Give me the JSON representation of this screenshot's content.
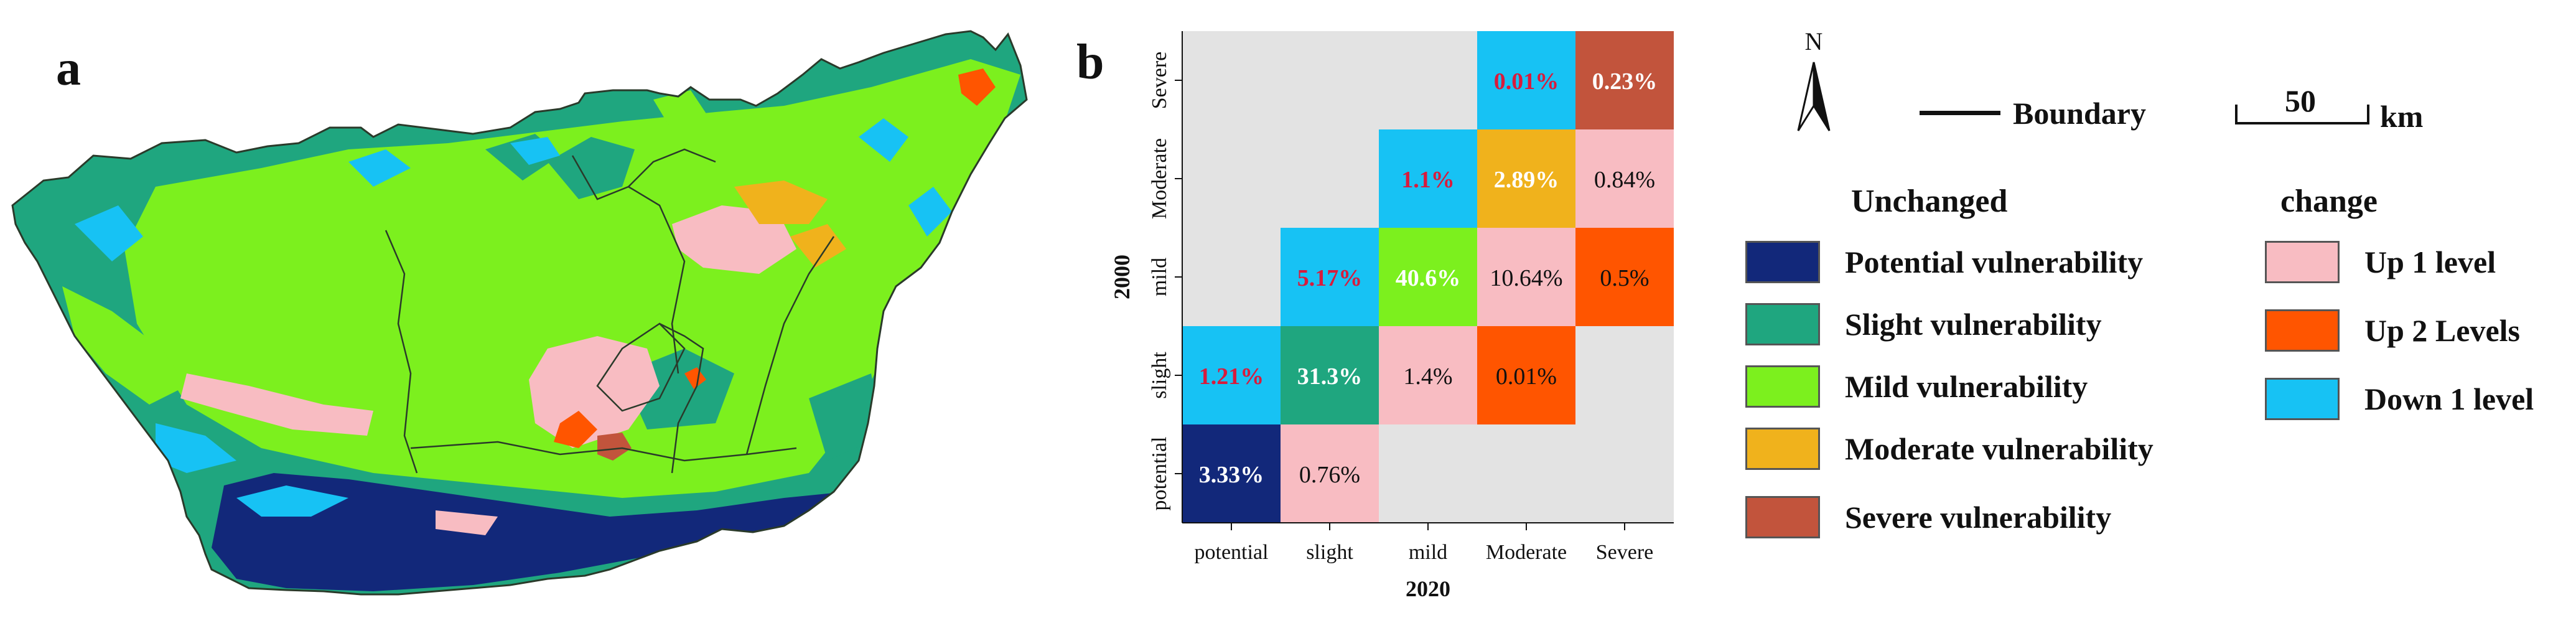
{
  "panel_a_label": "a",
  "panel_b_label": "b",
  "colors": {
    "potential": "#12287a",
    "slight": "#1fa67f",
    "mild": "#7cf01e",
    "moderate": "#f0b21c",
    "severe": "#c2543c",
    "up1": "#f8bcc2",
    "up2": "#ff5500",
    "down1": "#17c2f4",
    "empty": "#e3e3e3"
  },
  "matrix": {
    "x_title": "2020",
    "y_title": "2000",
    "x_labels": [
      "potential",
      "slight",
      "mild",
      "Moderate",
      "Severe"
    ],
    "y_labels": [
      "potential",
      "slight",
      "mild",
      "Moderate",
      "Severe"
    ],
    "cells": [
      {
        "row": "potential",
        "col": "potential",
        "value": "3.33%",
        "category": "potential",
        "text_color": "#ffffff"
      },
      {
        "row": "potential",
        "col": "slight",
        "value": "0.76%",
        "category": "up1",
        "text_color": "#111111"
      },
      {
        "row": "slight",
        "col": "potential",
        "value": "1.21%",
        "category": "down1",
        "text_color": "#d81b3c"
      },
      {
        "row": "slight",
        "col": "slight",
        "value": "31.3%",
        "category": "slight",
        "text_color": "#ffffff"
      },
      {
        "row": "slight",
        "col": "mild",
        "value": "1.4%",
        "category": "up1",
        "text_color": "#111111"
      },
      {
        "row": "slight",
        "col": "Moderate",
        "value": "0.01%",
        "category": "up2",
        "text_color": "#111111"
      },
      {
        "row": "mild",
        "col": "slight",
        "value": "5.17%",
        "category": "down1",
        "text_color": "#d81b3c"
      },
      {
        "row": "mild",
        "col": "mild",
        "value": "40.6%",
        "category": "mild",
        "text_color": "#ffffff"
      },
      {
        "row": "mild",
        "col": "Moderate",
        "value": "10.64%",
        "category": "up1",
        "text_color": "#111111"
      },
      {
        "row": "mild",
        "col": "Severe",
        "value": "0.5%",
        "category": "up2",
        "text_color": "#111111"
      },
      {
        "row": "Moderate",
        "col": "mild",
        "value": "1.1%",
        "category": "down1",
        "text_color": "#d81b3c"
      },
      {
        "row": "Moderate",
        "col": "Moderate",
        "value": "2.89%",
        "category": "moderate",
        "text_color": "#ffffff"
      },
      {
        "row": "Moderate",
        "col": "Severe",
        "value": "0.84%",
        "category": "up1",
        "text_color": "#111111"
      },
      {
        "row": "Severe",
        "col": "Moderate",
        "value": "0.01%",
        "category": "down1",
        "text_color": "#d81b3c"
      },
      {
        "row": "Severe",
        "col": "Severe",
        "value": "0.23%",
        "category": "severe",
        "text_color": "#ffffff"
      }
    ]
  },
  "north_label": "N",
  "boundary_label": "Boundary",
  "scale": {
    "value": "50",
    "unit": "km"
  },
  "legend": {
    "unchanged_title": "Unchanged",
    "unchanged": [
      {
        "label": "Potential vulnerability",
        "color_key": "potential"
      },
      {
        "label": "Slight vulnerability",
        "color_key": "slight"
      },
      {
        "label": "Mild vulnerability",
        "color_key": "mild"
      },
      {
        "label": "Moderate vulnerability",
        "color_key": "moderate"
      },
      {
        "label": "Severe vulnerability",
        "color_key": "severe"
      }
    ],
    "change_title": "change",
    "change": [
      {
        "label": "Up 1 level",
        "color_key": "up1"
      },
      {
        "label": "Up 2 Levels",
        "color_key": "up2"
      },
      {
        "label": "Down 1 level",
        "color_key": "down1"
      }
    ]
  }
}
